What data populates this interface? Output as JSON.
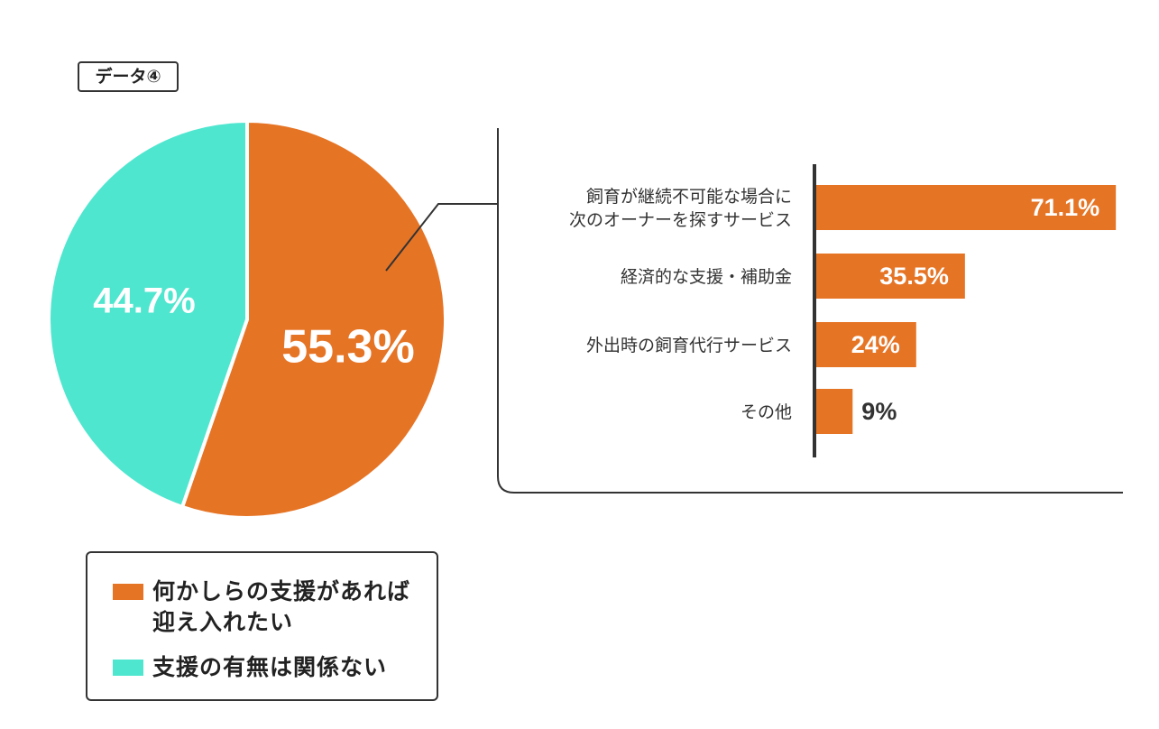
{
  "tag_label": "データ④",
  "chart_data": [
    {
      "type": "pie",
      "slices": [
        {
          "label": "何かしらの支援があれば迎え入れたい",
          "value": 55.3,
          "value_label": "55.3%",
          "color": "#E67425"
        },
        {
          "label": "支援の有無は関係ない",
          "value": 44.7,
          "value_label": "44.7%",
          "color": "#4FE6CF"
        }
      ],
      "start_angle_deg": 0,
      "direction": "clockwise",
      "legend": "bottom-left"
    },
    {
      "type": "bar",
      "orientation": "horizontal",
      "categories": [
        "飼育が継続不可能な場合に\n次のオーナーを探すサービス",
        "経済的な支援・補助金",
        "外出時の飼育代行サービス",
        "その他"
      ],
      "values": [
        71.1,
        35.5,
        24,
        9
      ],
      "value_labels": [
        "71.1%",
        "35.5%",
        "24%",
        "9%"
      ],
      "xlim": [
        0,
        100
      ],
      "color": "#E67425",
      "breakdown_of": "何かしらの支援があれば迎え入れたい"
    }
  ],
  "legend": {
    "items": [
      {
        "label": "何かしらの支援があれば\n迎え入れたい",
        "color": "#E67425"
      },
      {
        "label": "支援の有無は関係ない",
        "color": "#4FE6CF"
      }
    ]
  }
}
